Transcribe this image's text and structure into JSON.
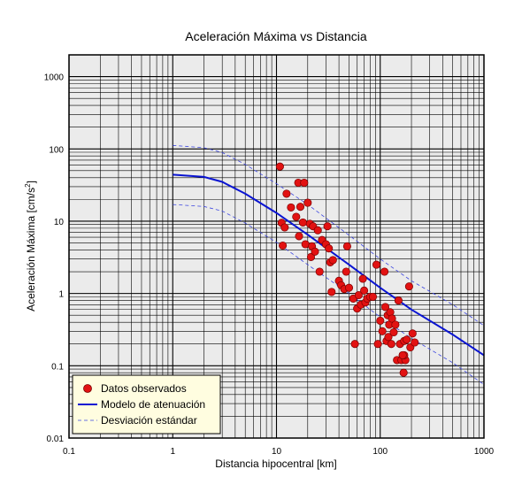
{
  "chart_data": {
    "type": "scatter",
    "title": "Aceleración Máxima vs Distancia",
    "xlabel": "Distancia hipocentral [km]",
    "ylabel_main": "Aceleración Máxima [cm/s",
    "ylabel_sup": "2",
    "ylabel_tail": "]",
    "x_scale": "log",
    "y_scale": "log",
    "xlim": [
      0.1,
      1000
    ],
    "ylim": [
      0.01,
      2000
    ],
    "grid": true,
    "legend_position": "bottom-left",
    "x_ticks": [
      {
        "v": 0.1,
        "label": "0.1"
      },
      {
        "v": 1,
        "label": "1"
      },
      {
        "v": 10,
        "label": "10"
      },
      {
        "v": 100,
        "label": "100"
      },
      {
        "v": 1000,
        "label": "1000"
      }
    ],
    "y_ticks": [
      {
        "v": 0.01,
        "label": "0.01"
      },
      {
        "v": 0.1,
        "label": "0.1"
      },
      {
        "v": 1,
        "label": "1"
      },
      {
        "v": 10,
        "label": "10"
      },
      {
        "v": 100,
        "label": "100"
      },
      {
        "v": 1000,
        "label": "1000"
      }
    ],
    "colors": {
      "points": "#e21212",
      "point_stroke": "#7a0000",
      "model": "#0a14d2",
      "std": "#3a44e0",
      "plot_bg": "#ebebeb",
      "legend_bg": "#fffde0"
    },
    "series": [
      {
        "name": "Datos observados",
        "kind": "points",
        "x": [
          10.8,
          11.5,
          11.2,
          12.0,
          12.5,
          13.8,
          15.5,
          16.2,
          16.5,
          17.0,
          18.0,
          18.5,
          19.0,
          20.0,
          21.0,
          21.5,
          22.0,
          22.5,
          23.5,
          25.0,
          26.0,
          27.5,
          30.0,
          31.0,
          32.0,
          33.0,
          34.0,
          35.0,
          40.0,
          42.0,
          45.0,
          47.0,
          48.0,
          50.0,
          55.0,
          57.0,
          60.0,
          62.0,
          65.0,
          68.0,
          70.0,
          72.0,
          75.0,
          80.0,
          85.0,
          92.0,
          95.0,
          100.0,
          105.0,
          110.0,
          112.0,
          115.0,
          118.0,
          120.0,
          122.0,
          125.0,
          128.0,
          130.0,
          135.0,
          140.0,
          145.0,
          150.0,
          155.0,
          160.0,
          165.0,
          168.0,
          170.0,
          175.0,
          180.0,
          190.0,
          195.0,
          205.0,
          215.0,
          170.0,
          165.0
        ],
        "y": [
          57.0,
          4.6,
          9.5,
          8.2,
          24.0,
          15.5,
          11.5,
          34.0,
          6.2,
          15.8,
          9.6,
          34.0,
          4.8,
          18.0,
          9.2,
          3.2,
          4.5,
          8.5,
          3.8,
          7.5,
          2.0,
          5.5,
          4.8,
          8.5,
          4.2,
          2.7,
          1.05,
          2.9,
          1.5,
          1.3,
          1.15,
          2.0,
          4.5,
          1.2,
          0.85,
          0.2,
          0.62,
          0.95,
          0.7,
          1.6,
          1.1,
          0.75,
          0.85,
          0.9,
          0.9,
          2.5,
          0.2,
          0.42,
          0.3,
          2.0,
          0.65,
          0.22,
          0.5,
          0.25,
          0.37,
          0.55,
          0.2,
          0.45,
          0.29,
          0.37,
          0.12,
          0.8,
          0.2,
          0.12,
          0.14,
          0.08,
          0.22,
          0.12,
          0.23,
          1.25,
          0.18,
          0.28,
          0.21,
          0.14,
          0.14
        ]
      },
      {
        "name": "Modelo de atenuación",
        "kind": "line",
        "x": [
          1,
          2,
          3,
          5,
          10,
          20,
          50,
          100,
          200,
          500,
          1000
        ],
        "y": [
          44,
          41,
          35,
          24,
          13,
          6.5,
          2.5,
          1.2,
          0.6,
          0.27,
          0.14
        ]
      },
      {
        "name": "Desviación estándar",
        "kind": "dashed",
        "bands": [
          {
            "x": [
              1,
              2,
              3,
              5,
              10,
              20,
              50,
              100,
              200,
              500,
              1000
            ],
            "y": [
              112,
              104,
              89,
              61,
              33,
              17,
              6.4,
              3.0,
              1.5,
              0.7,
              0.36
            ]
          },
          {
            "x": [
              1,
              2,
              3,
              5,
              10,
              20,
              50,
              100,
              200,
              500,
              1000
            ],
            "y": [
              17,
              16,
              13.8,
              9.4,
              5.1,
              2.5,
              1.0,
              0.47,
              0.24,
              0.11,
              0.055
            ]
          }
        ]
      }
    ]
  }
}
